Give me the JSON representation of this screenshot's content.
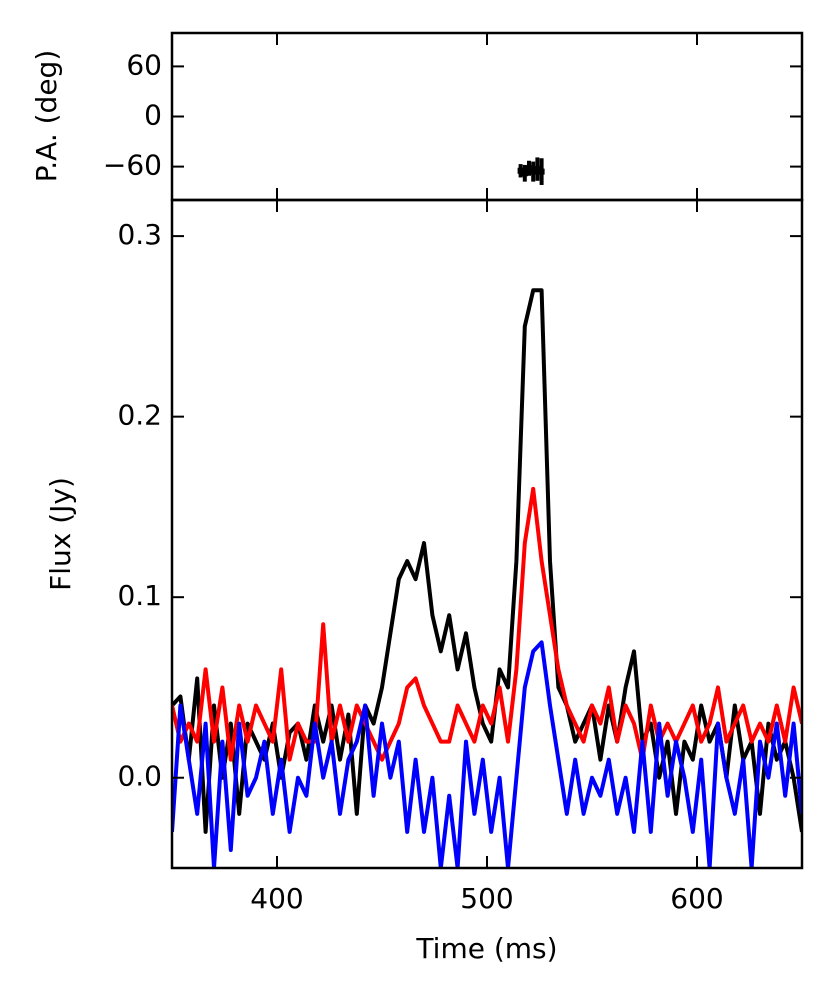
{
  "chart_data": [
    {
      "type": "errorbar",
      "y_label": "P.A. (deg)",
      "xlim": [
        350,
        650
      ],
      "ylim": [
        -100,
        100
      ],
      "yticks": [
        {
          "value": -60,
          "label": "−60"
        },
        0,
        60
      ],
      "color": "#000000",
      "x": [
        516,
        518,
        520,
        522,
        524,
        526
      ],
      "values": [
        -65,
        -68,
        -62,
        -66,
        -63,
        -66
      ],
      "errors": [
        8,
        10,
        9,
        12,
        14,
        16
      ]
    },
    {
      "type": "line",
      "x_label": "Time (ms)",
      "y_label": "Flux (Jy)",
      "xlim": [
        350,
        650
      ],
      "ylim": [
        -0.05,
        0.32
      ],
      "xticks": [
        400,
        500,
        600
      ],
      "yticks": [
        {
          "value": 0,
          "label": "0.0"
        },
        0.1,
        0.2,
        0.3
      ],
      "x": [
        350,
        354,
        358,
        362,
        366,
        370,
        374,
        378,
        382,
        386,
        390,
        394,
        398,
        402,
        406,
        410,
        414,
        418,
        422,
        426,
        430,
        434,
        438,
        442,
        446,
        450,
        454,
        458,
        462,
        466,
        470,
        474,
        478,
        482,
        486,
        490,
        494,
        498,
        502,
        506,
        510,
        514,
        518,
        522,
        526,
        530,
        534,
        538,
        542,
        546,
        550,
        554,
        558,
        562,
        566,
        570,
        574,
        578,
        582,
        586,
        590,
        594,
        598,
        602,
        606,
        610,
        614,
        618,
        622,
        626,
        630,
        634,
        638,
        642,
        646,
        650
      ],
      "series": [
        {
          "color": "#000000",
          "values": [
            0.04,
            0.045,
            0.01,
            0.055,
            -0.03,
            0.04,
            0.0,
            0.03,
            -0.02,
            0.03,
            0.02,
            0.01,
            0.03,
            0.0,
            0.025,
            0.03,
            0.01,
            0.04,
            0.02,
            0.04,
            0.01,
            0.035,
            -0.02,
            0.04,
            0.03,
            0.05,
            0.08,
            0.11,
            0.12,
            0.11,
            0.13,
            0.09,
            0.07,
            0.09,
            0.06,
            0.08,
            0.05,
            0.03,
            0.02,
            0.06,
            0.05,
            0.12,
            0.25,
            0.27,
            0.27,
            0.12,
            0.05,
            0.04,
            0.02,
            0.03,
            0.04,
            0.01,
            0.04,
            0.02,
            0.05,
            0.07,
            0.02,
            0.03,
            0.0,
            0.02,
            -0.02,
            0.02,
            0.01,
            0.04,
            0.02,
            0.03,
            0.0,
            0.04,
            0.01,
            0.02,
            -0.02,
            0.03,
            0.01,
            0.02,
            0.0,
            -0.03
          ]
        },
        {
          "color": "#ff0000",
          "values": [
            0.04,
            0.02,
            0.03,
            0.02,
            0.06,
            0.02,
            0.05,
            0.01,
            0.04,
            0.02,
            0.04,
            0.03,
            0.02,
            0.06,
            0.01,
            0.03,
            0.02,
            0.02,
            0.085,
            0.02,
            0.04,
            0.02,
            0.04,
            0.03,
            0.02,
            0.01,
            0.02,
            0.03,
            0.05,
            0.055,
            0.04,
            0.03,
            0.02,
            0.02,
            0.04,
            0.03,
            0.02,
            0.04,
            0.03,
            0.05,
            0.02,
            0.06,
            0.13,
            0.16,
            0.12,
            0.09,
            0.06,
            0.04,
            0.03,
            0.02,
            0.04,
            0.03,
            0.05,
            0.02,
            0.04,
            0.03,
            0.01,
            0.04,
            0.02,
            0.03,
            0.02,
            0.03,
            0.04,
            0.02,
            0.03,
            0.05,
            0.02,
            0.03,
            0.04,
            0.02,
            0.03,
            0.02,
            0.04,
            0.02,
            0.05,
            0.03
          ]
        },
        {
          "color": "#0000ff",
          "values": [
            -0.03,
            0.04,
            0.01,
            -0.02,
            0.03,
            -0.05,
            0.02,
            -0.04,
            0.03,
            -0.01,
            0.0,
            0.02,
            -0.02,
            0.01,
            -0.03,
            0.0,
            -0.01,
            0.03,
            0.0,
            0.02,
            -0.02,
            0.01,
            0.02,
            0.04,
            -0.01,
            0.03,
            0.0,
            0.02,
            -0.03,
            0.01,
            -0.03,
            0.0,
            -0.05,
            -0.01,
            -0.05,
            0.02,
            -0.02,
            0.01,
            -0.03,
            0.0,
            -0.05,
            0.0,
            0.05,
            0.07,
            0.075,
            0.04,
            0.01,
            -0.02,
            0.01,
            -0.02,
            0.0,
            -0.01,
            0.01,
            -0.02,
            0.0,
            -0.03,
            0.02,
            -0.03,
            0.03,
            -0.01,
            0.02,
            0.0,
            -0.03,
            0.01,
            -0.05,
            0.03,
            0.0,
            -0.02,
            0.01,
            -0.05,
            0.02,
            0.0,
            0.03,
            -0.01,
            0.03,
            -0.02
          ]
        }
      ]
    }
  ]
}
